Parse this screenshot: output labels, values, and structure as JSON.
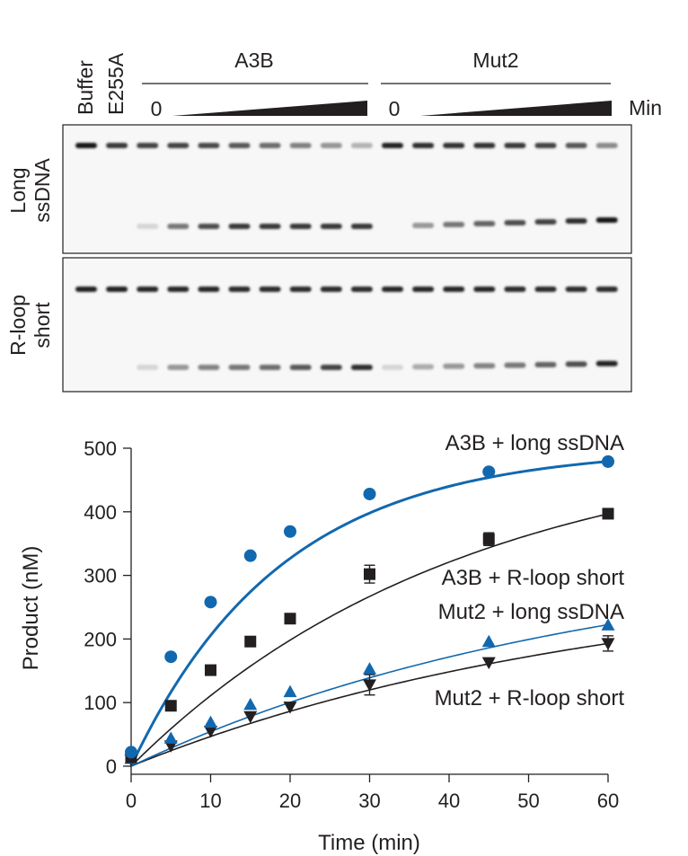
{
  "gel": {
    "lane_labels": [
      "Buffer",
      "E255A"
    ],
    "group_labels": [
      "A3B",
      "Mut2"
    ],
    "zero_label": "0",
    "time_unit": "Min",
    "panel_labels": [
      {
        "line1": "Long",
        "line2": "ssDNA"
      },
      {
        "line1": "R-loop",
        "line2": "short"
      }
    ],
    "lanes_per_panel": 18,
    "upper_band_intensity": {
      "long_ssDNA": [
        1.0,
        0.85,
        0.8,
        0.8,
        0.78,
        0.7,
        0.6,
        0.5,
        0.4,
        0.25,
        0.95,
        0.9,
        0.88,
        0.88,
        0.85,
        0.8,
        0.7,
        0.45
      ],
      "r_loop_short": [
        0.95,
        0.95,
        0.93,
        0.93,
        0.93,
        0.92,
        0.92,
        0.92,
        0.92,
        0.92,
        0.93,
        0.93,
        0.93,
        0.93,
        0.92,
        0.92,
        0.92,
        0.92
      ]
    },
    "lower_band_intensity": {
      "long_ssDNA": [
        0.0,
        0.0,
        0.1,
        0.55,
        0.75,
        0.85,
        0.85,
        0.85,
        0.85,
        0.85,
        0.0,
        0.4,
        0.55,
        0.65,
        0.75,
        0.8,
        0.9,
        1.0
      ],
      "r_loop_short": [
        0.0,
        0.0,
        0.1,
        0.4,
        0.5,
        0.55,
        0.6,
        0.7,
        0.8,
        0.9,
        0.1,
        0.3,
        0.4,
        0.5,
        0.55,
        0.65,
        0.75,
        0.95
      ]
    }
  },
  "chart_data": {
    "type": "scatter",
    "xlabel": "Time (min)",
    "ylabel": "Product (nM)",
    "xlim": [
      0,
      60
    ],
    "ylim": [
      0,
      500
    ],
    "xticks": [
      0,
      10,
      20,
      30,
      40,
      50,
      60
    ],
    "yticks": [
      0,
      100,
      200,
      300,
      400,
      500
    ],
    "x": [
      0,
      5,
      10,
      15,
      20,
      30,
      45,
      60
    ],
    "series": [
      {
        "name": "A3B + long ssDNA",
        "color": "#1268ae",
        "marker": "circle",
        "line_width": 3,
        "values": [
          22,
          172,
          258,
          331,
          369,
          428,
          463,
          479
        ],
        "errors": [
          0,
          0,
          0,
          0,
          0,
          0,
          0,
          0
        ],
        "fit_curve": {
          "model": "Pmax*(1-exp(-k*t))",
          "Pmax": 500,
          "k": 0.053
        }
      },
      {
        "name": "A3B + R-loop short",
        "color": "#231f20",
        "marker": "square",
        "line_width": 1.6,
        "values": [
          14,
          95,
          151,
          196,
          232,
          302,
          357,
          397
        ],
        "errors": [
          0,
          0,
          0,
          0,
          0,
          14,
          10,
          0
        ],
        "fit_curve": {
          "model": "Pmax*(1-exp(-k*t))",
          "Pmax": 520,
          "k": 0.024
        }
      },
      {
        "name": "Mut2 + long ssDNA",
        "color": "#1268ae",
        "marker": "triangle-up",
        "line_width": 1.6,
        "values": [
          12,
          44,
          69,
          97,
          117,
          153,
          196,
          222
        ],
        "errors": [
          0,
          0,
          0,
          0,
          0,
          0,
          0,
          0
        ],
        "fit_curve": {
          "model": "Pmax*(1-exp(-k*t))",
          "Pmax": 348,
          "k": 0.017
        }
      },
      {
        "name": "Mut2 + R-loop short",
        "color": "#231f20",
        "marker": "triangle-down",
        "line_width": 1.6,
        "values": [
          10,
          32,
          55,
          78,
          93,
          128,
          163,
          193
        ],
        "errors": [
          0,
          0,
          0,
          0,
          0,
          16,
          0,
          12
        ],
        "fit_curve": {
          "model": "Pmax*(1-exp(-k*t))",
          "Pmax": 307,
          "k": 0.0165
        }
      }
    ],
    "annotations": [
      "A3B + long ssDNA",
      "A3B + R-loop short",
      "Mut2 + long ssDNA",
      "Mut2 + R-loop short"
    ]
  }
}
